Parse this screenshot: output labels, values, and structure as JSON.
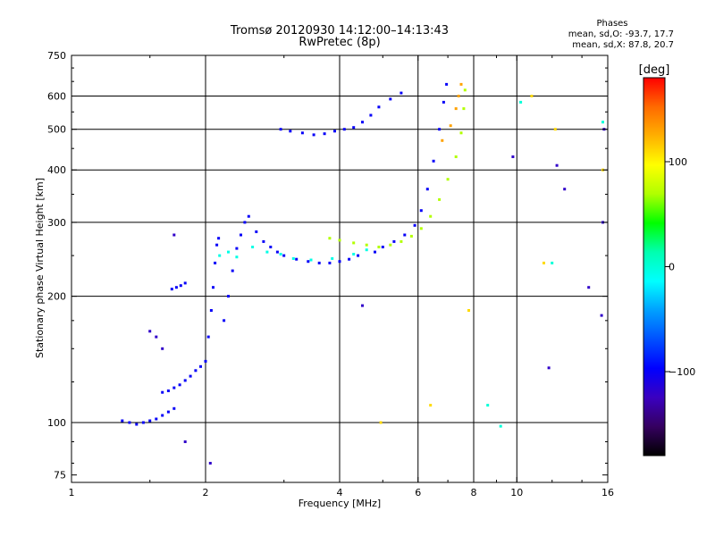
{
  "header": {
    "title": "Tromsø 20120930 14:12:00–14:13:43",
    "subtitle": "RwPretec (8p)",
    "phases_title": "Phases",
    "phases_o": "mean, sd,O: -93.7, 17.7",
    "phases_x": "mean, sd,X:  87.8, 20.7"
  },
  "colorbar": {
    "label": "[deg]",
    "ticks": [
      {
        "value": 100,
        "label": "100"
      },
      {
        "value": 0,
        "label": "0"
      },
      {
        "value": -100,
        "label": "−100"
      }
    ],
    "range": [
      -180,
      180
    ],
    "stops": [
      "#ff0000",
      "#ff6a00",
      "#ffb000",
      "#ffff00",
      "#b0ff00",
      "#00ff00",
      "#00ffb0",
      "#00ffff",
      "#00a0ff",
      "#0050ff",
      "#0000ff",
      "#3a00c0",
      "#350060",
      "#000000"
    ]
  },
  "chart_data": {
    "type": "scatter",
    "title": "Tromsø 20120930 14:12:00–14:13:43",
    "subtitle": "RwPretec (8p)",
    "xlabel": "Frequency [MHz]",
    "ylabel": "Stationary phase Virtual Height [km]",
    "xscale": "log",
    "yscale": "log",
    "xlim": [
      1,
      16
    ],
    "ylim": [
      72,
      750
    ],
    "xticks": [
      {
        "value": 1,
        "label": "1"
      },
      {
        "value": 2,
        "label": "2"
      },
      {
        "value": 4,
        "label": "4"
      },
      {
        "value": 6,
        "label": "6"
      },
      {
        "value": 8,
        "label": "8"
      },
      {
        "value": 10,
        "label": "10"
      },
      {
        "value": 16,
        "label": "16"
      }
    ],
    "yticks": [
      {
        "value": 75,
        "label": "75"
      },
      {
        "value": 100,
        "label": "100"
      },
      {
        "value": 200,
        "label": "200"
      },
      {
        "value": 300,
        "label": "300"
      },
      {
        "value": 400,
        "label": "400"
      },
      {
        "value": 500,
        "label": "500"
      },
      {
        "value": 600,
        "label": "600"
      },
      {
        "value": 750,
        "label": "750"
      }
    ],
    "grid_x": [
      2,
      4,
      6,
      8,
      10
    ],
    "grid_y": [
      100,
      200,
      300,
      400,
      500,
      600
    ],
    "color_variable": "phase [deg]",
    "traces": [
      {
        "phase": -100,
        "points": [
          [
            1.3,
            101
          ],
          [
            1.35,
            100
          ],
          [
            1.4,
            99
          ],
          [
            1.45,
            100
          ],
          [
            1.5,
            101
          ],
          [
            1.55,
            102
          ],
          [
            1.6,
            104
          ],
          [
            1.65,
            106
          ],
          [
            1.7,
            108
          ],
          [
            1.6,
            118
          ],
          [
            1.65,
            119
          ],
          [
            1.7,
            121
          ],
          [
            1.75,
            123
          ],
          [
            1.8,
            126
          ],
          [
            1.85,
            129
          ],
          [
            1.9,
            133
          ],
          [
            1.95,
            136
          ],
          [
            1.68,
            208
          ],
          [
            1.72,
            210
          ],
          [
            1.76,
            212
          ],
          [
            1.8,
            215
          ],
          [
            2.0,
            140
          ],
          [
            2.03,
            160
          ],
          [
            2.06,
            185
          ],
          [
            2.08,
            210
          ],
          [
            2.1,
            240
          ],
          [
            2.12,
            265
          ],
          [
            2.14,
            275
          ],
          [
            2.2,
            175
          ],
          [
            2.25,
            200
          ],
          [
            2.3,
            230
          ],
          [
            2.35,
            260
          ],
          [
            2.4,
            280
          ],
          [
            2.45,
            300
          ],
          [
            2.5,
            310
          ],
          [
            2.6,
            285
          ],
          [
            2.7,
            270
          ],
          [
            2.8,
            262
          ],
          [
            2.9,
            255
          ],
          [
            3.0,
            250
          ],
          [
            3.2,
            245
          ],
          [
            3.4,
            242
          ],
          [
            3.6,
            240
          ],
          [
            3.8,
            240
          ],
          [
            4.0,
            242
          ],
          [
            4.2,
            245
          ],
          [
            4.4,
            250
          ],
          [
            2.95,
            500
          ],
          [
            3.1,
            495
          ],
          [
            3.3,
            490
          ],
          [
            3.5,
            485
          ],
          [
            3.7,
            488
          ],
          [
            3.9,
            495
          ],
          [
            4.1,
            500
          ],
          [
            4.3,
            505
          ],
          [
            4.5,
            520
          ],
          [
            4.7,
            540
          ],
          [
            4.9,
            565
          ],
          [
            5.2,
            590
          ],
          [
            5.5,
            610
          ],
          [
            4.8,
            255
          ],
          [
            5.0,
            262
          ],
          [
            5.3,
            270
          ],
          [
            5.6,
            280
          ],
          [
            5.9,
            295
          ],
          [
            6.1,
            320
          ],
          [
            6.3,
            360
          ],
          [
            6.5,
            420
          ],
          [
            6.7,
            500
          ],
          [
            6.85,
            580
          ],
          [
            6.95,
            640
          ]
        ]
      },
      {
        "phase": -5,
        "points": [
          [
            2.15,
            250
          ],
          [
            2.25,
            255
          ],
          [
            2.35,
            248
          ],
          [
            2.55,
            262
          ],
          [
            2.75,
            255
          ],
          [
            2.95,
            252
          ],
          [
            3.15,
            246
          ],
          [
            3.45,
            244
          ],
          [
            3.85,
            246
          ],
          [
            4.3,
            252
          ],
          [
            4.6,
            258
          ]
        ]
      },
      {
        "phase": 70,
        "points": [
          [
            3.8,
            275
          ],
          [
            4.0,
            272
          ],
          [
            4.3,
            268
          ],
          [
            4.6,
            265
          ],
          [
            4.9,
            262
          ],
          [
            5.2,
            265
          ],
          [
            5.5,
            270
          ],
          [
            5.8,
            278
          ],
          [
            6.1,
            290
          ],
          [
            6.4,
            310
          ],
          [
            6.7,
            340
          ],
          [
            7.0,
            380
          ],
          [
            7.3,
            430
          ],
          [
            7.5,
            490
          ],
          [
            7.6,
            560
          ],
          [
            7.65,
            620
          ]
        ]
      },
      {
        "phase": 130,
        "points": [
          [
            6.8,
            470
          ],
          [
            7.1,
            510
          ],
          [
            7.3,
            560
          ],
          [
            7.4,
            600
          ],
          [
            7.5,
            640
          ]
        ]
      },
      {
        "phase": -120,
        "points": [
          [
            1.5,
            165
          ],
          [
            1.55,
            160
          ],
          [
            1.6,
            150
          ],
          [
            1.7,
            280
          ],
          [
            1.8,
            90
          ],
          [
            2.05,
            80
          ],
          [
            4.5,
            190
          ],
          [
            9.8,
            430
          ],
          [
            11.8,
            135
          ],
          [
            12.3,
            410
          ],
          [
            12.8,
            360
          ],
          [
            14.5,
            210
          ],
          [
            15.5,
            180
          ],
          [
            15.6,
            300
          ],
          [
            15.7,
            500
          ]
        ]
      },
      {
        "phase": 110,
        "points": [
          [
            4.95,
            100
          ],
          [
            6.4,
            110
          ],
          [
            7.8,
            185
          ],
          [
            10.8,
            600
          ],
          [
            11.5,
            240
          ],
          [
            12.2,
            500
          ],
          [
            15.6,
            400
          ]
        ]
      },
      {
        "phase": 0,
        "points": [
          [
            8.6,
            110
          ],
          [
            9.2,
            98
          ],
          [
            10.2,
            580
          ],
          [
            12.0,
            240
          ],
          [
            15.6,
            520
          ]
        ]
      }
    ]
  }
}
